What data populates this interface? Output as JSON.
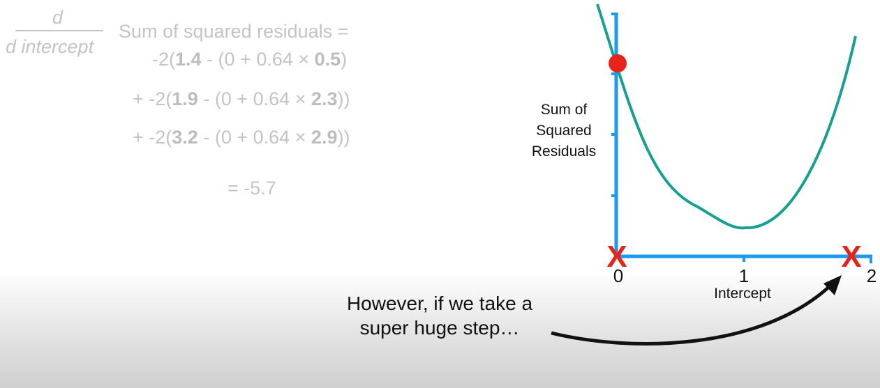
{
  "formula": {
    "numerator": "d",
    "denominator": "d intercept",
    "lhs": "Sum of squared residuals =",
    "terms": [
      {
        "prefix": "-2(",
        "obs": "1.4",
        "mid": " - (0 + 0.64 × ",
        "x": "0.5",
        "suffix": ")"
      },
      {
        "prefix": "+ -2(",
        "obs": "1.9",
        "mid": " - (0 + 0.64 × ",
        "x": "2.3",
        "suffix": "))"
      },
      {
        "prefix": "+ -2(",
        "obs": "3.2",
        "mid": " - (0 + 0.64 × ",
        "x": "2.9",
        "suffix": "))"
      }
    ],
    "result": "= -5.7"
  },
  "plot": {
    "ylabel_lines": [
      "Sum of",
      "Squared",
      "Residuals"
    ],
    "xlabel": "Intercept",
    "ticks": [
      "0",
      "1",
      "2"
    ],
    "marker_x": "X",
    "colors": {
      "axis": "#1a9bf0",
      "curve": "#16a090",
      "point": "#e8231c",
      "x_marker": "#e8231c",
      "arrow": "#111111"
    }
  },
  "chart_data": {
    "type": "line",
    "xlabel": "Intercept",
    "ylabel": "Sum of Squared Residuals",
    "x_ticks": [
      0,
      1,
      2
    ],
    "curve_minimum_x": 1,
    "current_point_intercept": 0,
    "x_markers": [
      0,
      1.85
    ]
  },
  "caption": {
    "line1": "However, if we take a",
    "line2": "super huge step…"
  }
}
